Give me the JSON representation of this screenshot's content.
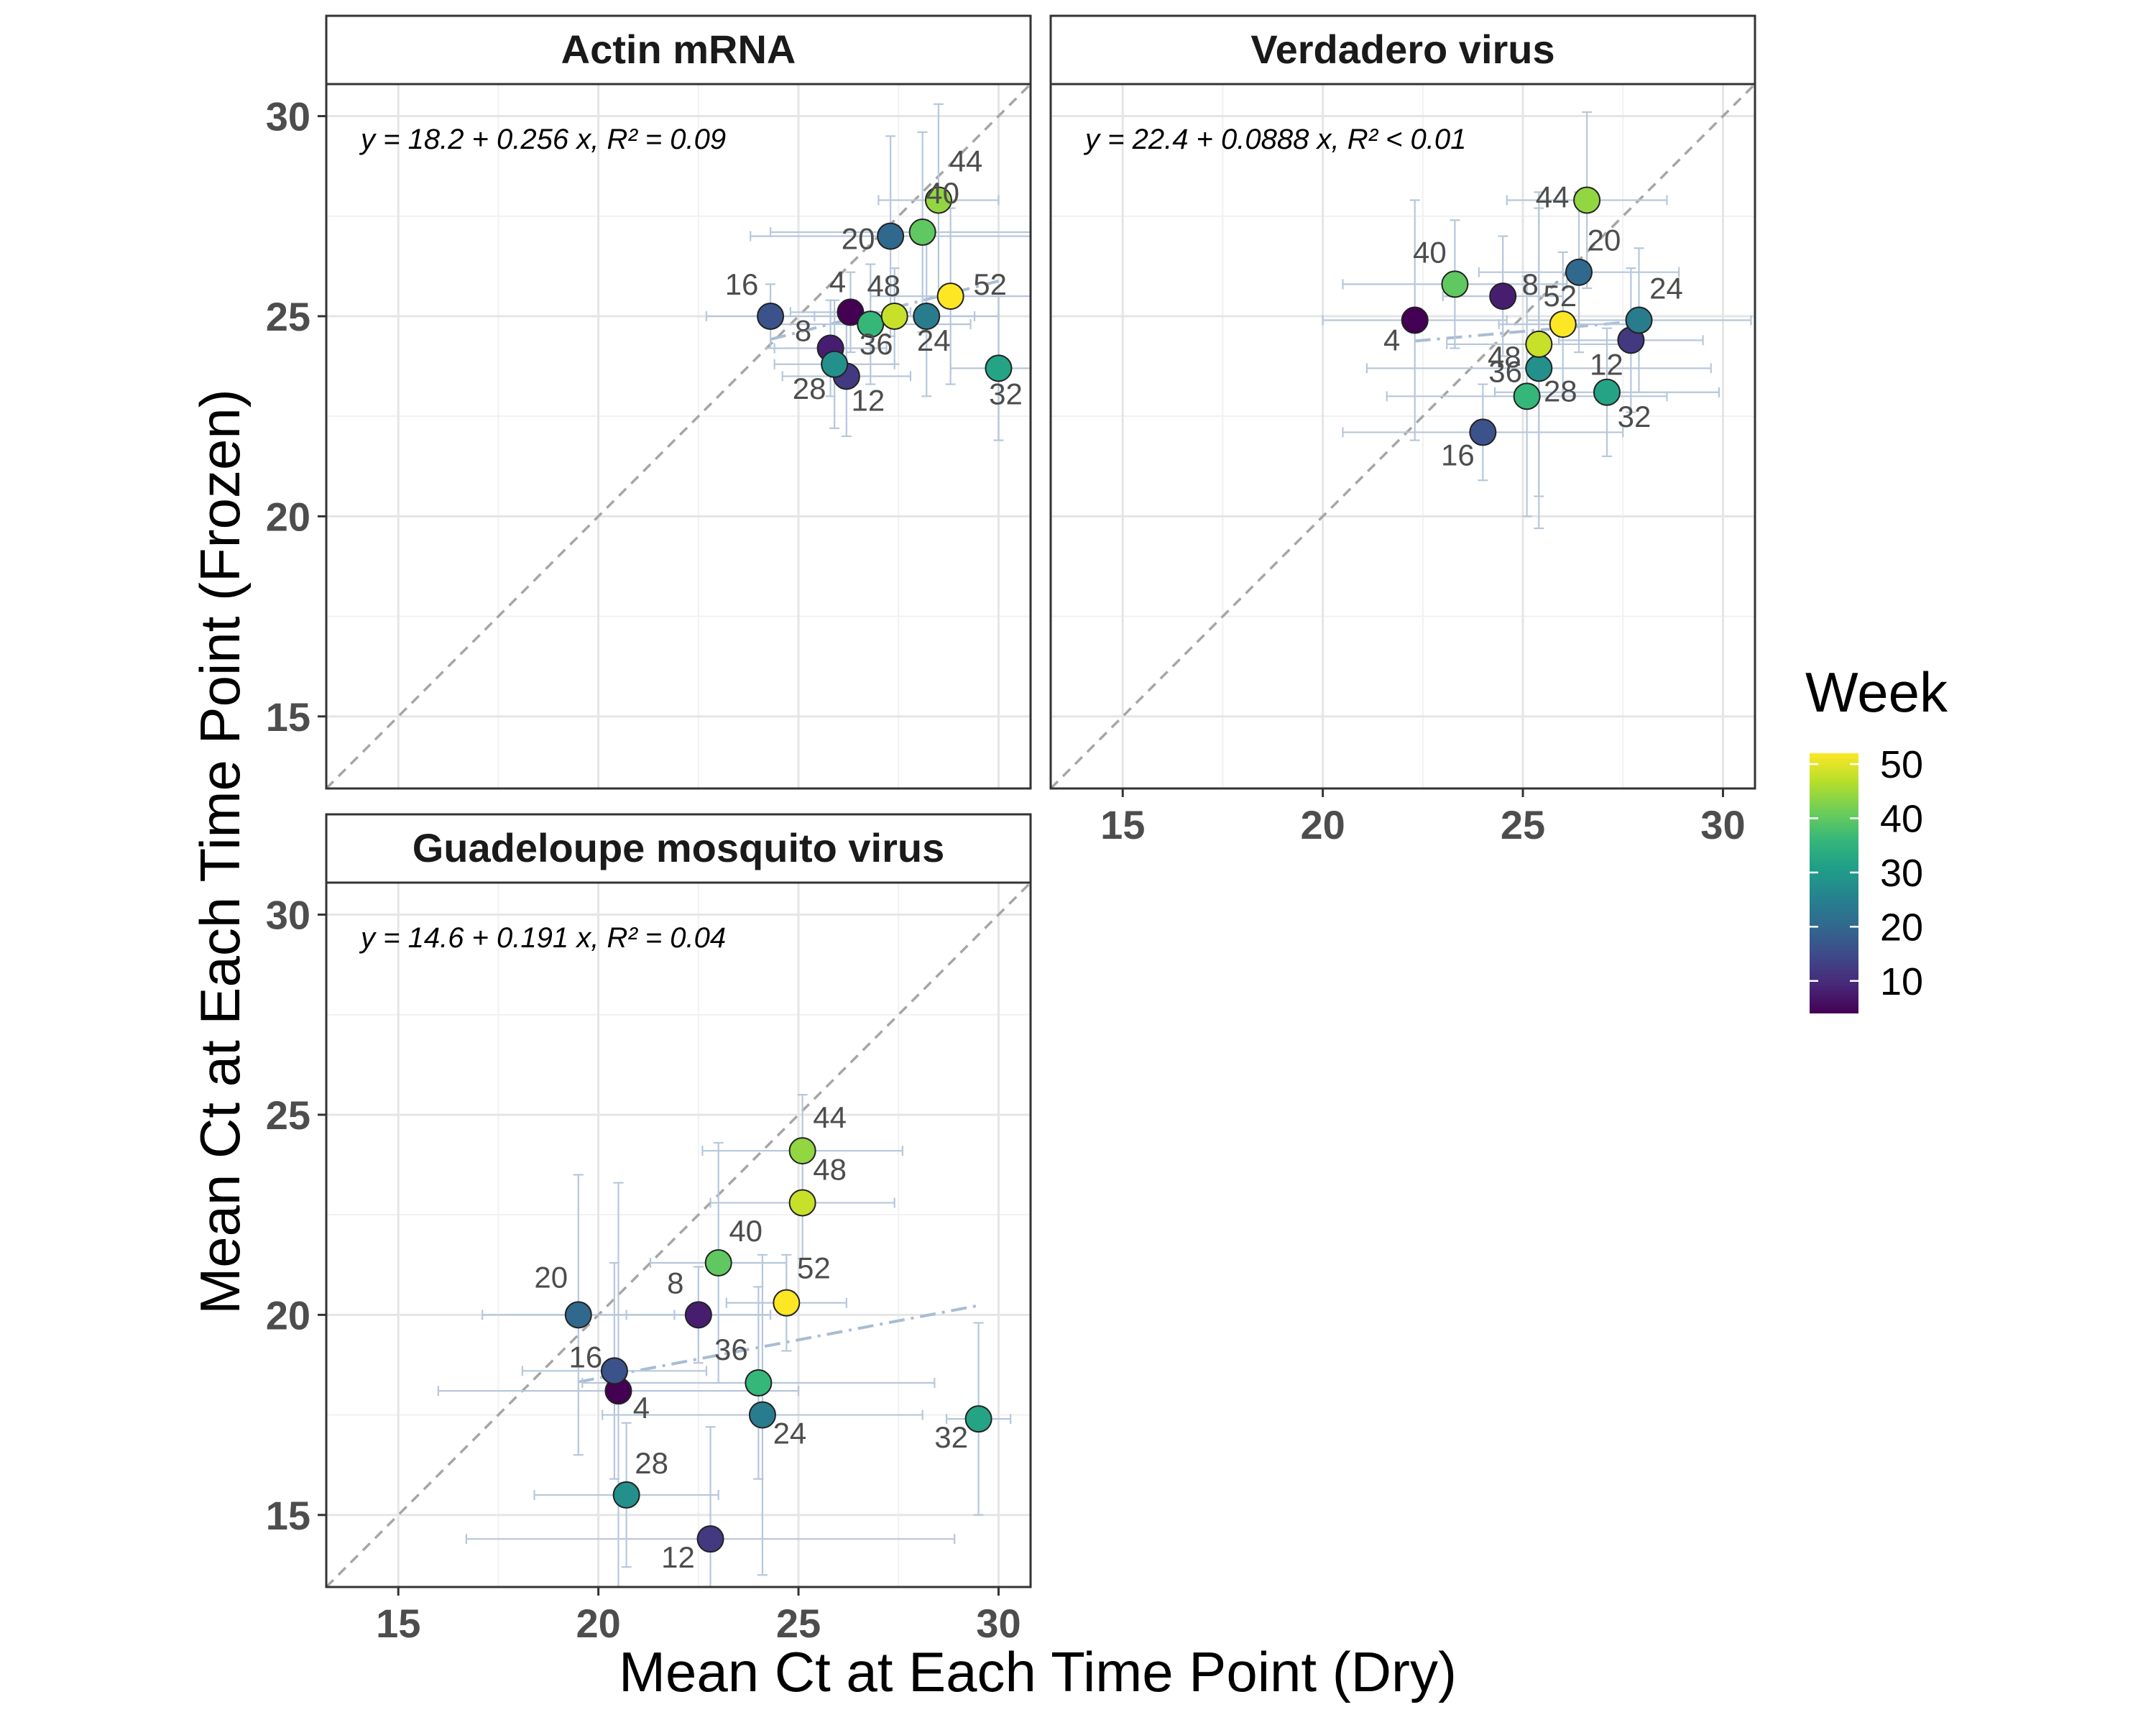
{
  "colors": {
    "gridMajor": "#e5e5e5",
    "gridMinor": "#f1f1f1",
    "frame": "#333333",
    "errorBar": "#b7c7db",
    "identityLine": "#a6a6a6",
    "fitLine": "#a9bdd4",
    "pointStroke": "#222222",
    "viridis": [
      "#440154",
      "#482878",
      "#3e4a89",
      "#31688e",
      "#26828e",
      "#1f9e89",
      "#35b779",
      "#6ece58",
      "#b5de2b",
      "#fde725"
    ]
  },
  "axes": {
    "xlabel": "Mean Ct at Each Time Point (Dry)",
    "ylabel": "Mean Ct at Each Time Point (Frozen)",
    "xticks": [
      "15",
      "20",
      "25",
      "30"
    ],
    "yticks": [
      "15",
      "20",
      "25",
      "30"
    ]
  },
  "legend": {
    "title": "Week",
    "ticks": [
      "10",
      "20",
      "30",
      "40",
      "50"
    ]
  },
  "chart_data": [
    {
      "type": "scatter",
      "title": "Actin mRNA",
      "equation": "y = 18.2 + 0.256 x, R² = 0.09",
      "fit": {
        "intercept": 18.2,
        "slope": 0.256
      },
      "xlim": [
        13.2,
        30.8
      ],
      "ylim": [
        13.2,
        30.8
      ],
      "points": [
        {
          "week": 4,
          "x": 26.3,
          "y": 25.1,
          "xerr": 1.5,
          "yerr": 1.0
        },
        {
          "week": 8,
          "x": 25.8,
          "y": 24.2,
          "xerr": 1.4,
          "yerr": 1.2
        },
        {
          "week": 12,
          "x": 26.2,
          "y": 23.5,
          "xerr": 1.6,
          "yerr": 1.5
        },
        {
          "week": 16,
          "x": 24.3,
          "y": 25.0,
          "xerr": 1.6,
          "yerr": 0.8
        },
        {
          "week": 20,
          "x": 27.3,
          "y": 27.0,
          "xerr": 3.5,
          "yerr": 2.5
        },
        {
          "week": 24,
          "x": 28.2,
          "y": 25.0,
          "xerr": 1.8,
          "yerr": 2.0
        },
        {
          "week": 28,
          "x": 25.9,
          "y": 23.8,
          "xerr": 1.5,
          "yerr": 1.6
        },
        {
          "week": 32,
          "x": 30.0,
          "y": 23.7,
          "xerr": 1.2,
          "yerr": 1.8
        },
        {
          "week": 36,
          "x": 26.8,
          "y": 24.8,
          "xerr": 2.5,
          "yerr": 1.5
        },
        {
          "week": 40,
          "x": 28.1,
          "y": 27.1,
          "xerr": 3.8,
          "yerr": 2.5
        },
        {
          "week": 44,
          "x": 28.5,
          "y": 27.9,
          "xerr": 1.5,
          "yerr": 2.4
        },
        {
          "week": 48,
          "x": 27.4,
          "y": 25.0,
          "xerr": 2.0,
          "yerr": 1.2
        },
        {
          "week": 52,
          "x": 28.8,
          "y": 25.5,
          "xerr": 2.0,
          "yerr": 2.2
        }
      ]
    },
    {
      "type": "scatter",
      "title": "Verdadero virus",
      "equation": "y = 22.4 + 0.0888 x, R² < 0.01",
      "fit": {
        "intercept": 22.4,
        "slope": 0.0888
      },
      "xlim": [
        13.2,
        30.8
      ],
      "ylim": [
        13.2,
        30.8
      ],
      "points": [
        {
          "week": 4,
          "x": 22.3,
          "y": 24.9,
          "xerr": 2.3,
          "yerr": 3.0
        },
        {
          "week": 8,
          "x": 24.5,
          "y": 25.5,
          "xerr": 1.5,
          "yerr": 1.5
        },
        {
          "week": 12,
          "x": 27.7,
          "y": 24.4,
          "xerr": 1.8,
          "yerr": 1.8
        },
        {
          "week": 16,
          "x": 24.0,
          "y": 22.1,
          "xerr": 3.5,
          "yerr": 1.2
        },
        {
          "week": 20,
          "x": 26.4,
          "y": 26.1,
          "xerr": 2.5,
          "yerr": 2.0
        },
        {
          "week": 24,
          "x": 27.9,
          "y": 24.9,
          "xerr": 2.8,
          "yerr": 1.8
        },
        {
          "week": 28,
          "x": 25.4,
          "y": 23.7,
          "xerr": 4.3,
          "yerr": 4.0
        },
        {
          "week": 32,
          "x": 27.1,
          "y": 23.1,
          "xerr": 2.8,
          "yerr": 1.6
        },
        {
          "week": 36,
          "x": 25.1,
          "y": 23.0,
          "xerr": 3.5,
          "yerr": 3.0
        },
        {
          "week": 40,
          "x": 23.3,
          "y": 25.8,
          "xerr": 2.8,
          "yerr": 1.6
        },
        {
          "week": 44,
          "x": 26.6,
          "y": 27.9,
          "xerr": 2.0,
          "yerr": 2.2
        },
        {
          "week": 48,
          "x": 25.4,
          "y": 24.3,
          "xerr": 2.3,
          "yerr": 3.8
        },
        {
          "week": 52,
          "x": 26.0,
          "y": 24.8,
          "xerr": 1.6,
          "yerr": 1.8
        }
      ]
    },
    {
      "type": "scatter",
      "title": "Guadeloupe mosquito virus",
      "equation": "y = 14.6 + 0.191 x, R² = 0.04",
      "fit": {
        "intercept": 14.6,
        "slope": 0.191
      },
      "xlim": [
        13.2,
        30.8
      ],
      "ylim": [
        13.2,
        30.8
      ],
      "points": [
        {
          "week": 4,
          "x": 20.5,
          "y": 18.1,
          "xerr": 4.5,
          "yerr": 5.2
        },
        {
          "week": 8,
          "x": 22.5,
          "y": 20.0,
          "xerr": 1.8,
          "yerr": 1.2
        },
        {
          "week": 12,
          "x": 22.8,
          "y": 14.4,
          "xerr": 6.1,
          "yerr": 2.8
        },
        {
          "week": 16,
          "x": 20.4,
          "y": 18.6,
          "xerr": 2.3,
          "yerr": 2.7
        },
        {
          "week": 20,
          "x": 19.5,
          "y": 20.0,
          "xerr": 2.4,
          "yerr": 3.5
        },
        {
          "week": 24,
          "x": 24.1,
          "y": 17.5,
          "xerr": 4.0,
          "yerr": 4.0
        },
        {
          "week": 28,
          "x": 20.7,
          "y": 15.5,
          "xerr": 2.3,
          "yerr": 1.8
        },
        {
          "week": 32,
          "x": 29.5,
          "y": 17.4,
          "xerr": 0.8,
          "yerr": 2.4
        },
        {
          "week": 36,
          "x": 24.0,
          "y": 18.3,
          "xerr": 4.4,
          "yerr": 2.4
        },
        {
          "week": 40,
          "x": 23.0,
          "y": 21.3,
          "xerr": 1.7,
          "yerr": 3.0
        },
        {
          "week": 44,
          "x": 25.1,
          "y": 24.1,
          "xerr": 2.5,
          "yerr": 1.4
        },
        {
          "week": 48,
          "x": 25.1,
          "y": 22.8,
          "xerr": 2.3,
          "yerr": 1.4
        },
        {
          "week": 52,
          "x": 24.7,
          "y": 20.3,
          "xerr": 1.5,
          "yerr": 1.2
        }
      ]
    }
  ]
}
